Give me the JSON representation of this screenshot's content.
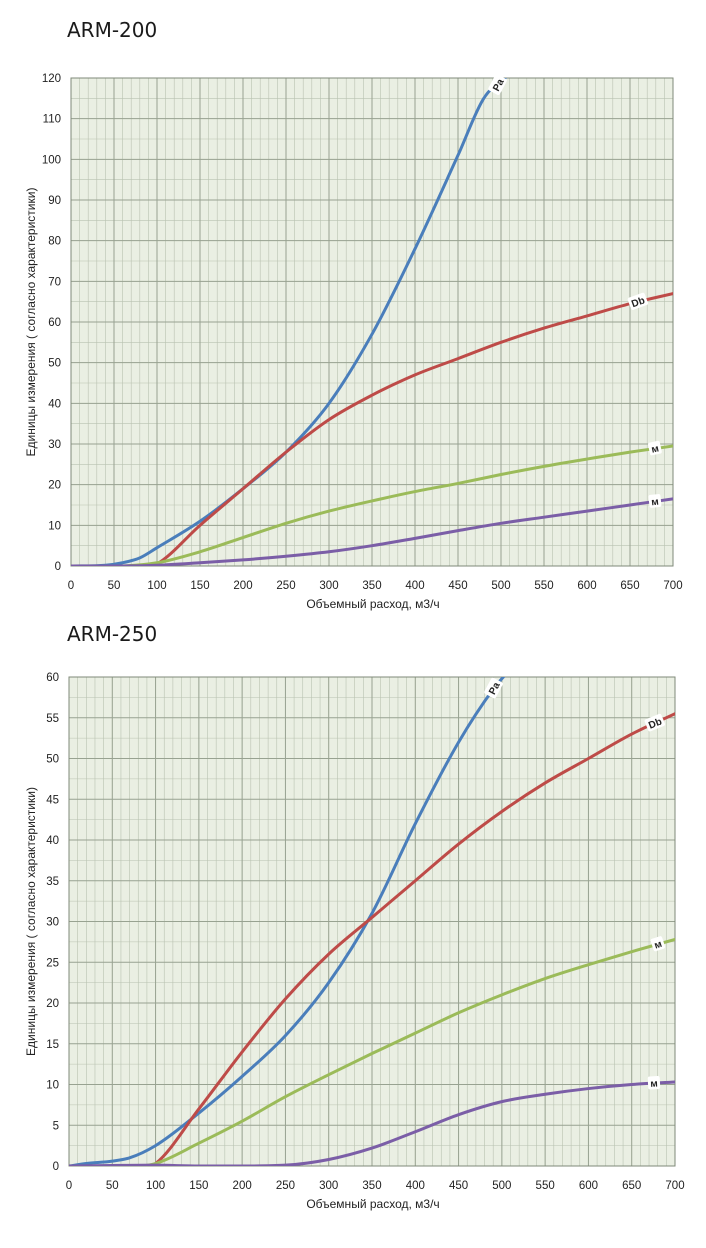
{
  "chart_data": [
    {
      "type": "line",
      "title": "ARM-200",
      "xlabel": "Объемный расход, м3/ч",
      "ylabel": "Единицы измерения ( согласно характеристики)",
      "xlim": [
        0,
        700
      ],
      "ylim": [
        0,
        120
      ],
      "x_ticks": [
        0,
        50,
        100,
        150,
        200,
        250,
        300,
        350,
        400,
        450,
        500,
        550,
        600,
        650,
        700
      ],
      "y_ticks": [
        0,
        10,
        20,
        30,
        40,
        50,
        60,
        70,
        80,
        90,
        100,
        110,
        120
      ],
      "grid": true,
      "series": [
        {
          "name": "Pa",
          "color": "#4a7ebb",
          "x": [
            0,
            40,
            60,
            80,
            100,
            150,
            200,
            250,
            300,
            350,
            400,
            450,
            480,
            510
          ],
          "y": [
            0,
            0.2,
            0.8,
            2,
            4.5,
            11,
            19,
            28,
            40,
            57,
            78,
            101,
            115,
            121
          ]
        },
        {
          "name": "Db",
          "color": "#be4b48",
          "x": [
            0,
            90,
            100,
            150,
            200,
            250,
            300,
            350,
            400,
            450,
            500,
            550,
            600,
            650,
            700
          ],
          "y": [
            0,
            0,
            0.5,
            10,
            19,
            28,
            36,
            42,
            47,
            51,
            55,
            58.5,
            61.5,
            64.5,
            67
          ]
        },
        {
          "name": "м",
          "color": "#9bbb59",
          "x": [
            0,
            50,
            100,
            150,
            200,
            250,
            300,
            350,
            400,
            450,
            500,
            550,
            600,
            650,
            700
          ],
          "y": [
            0,
            0,
            0.8,
            3.5,
            7,
            10.5,
            13.5,
            16,
            18.3,
            20.3,
            22.5,
            24.5,
            26.3,
            28,
            29.5
          ]
        },
        {
          "name": "м",
          "color": "#7b5ea7",
          "x": [
            0,
            50,
            100,
            150,
            200,
            250,
            300,
            350,
            400,
            450,
            500,
            550,
            600,
            650,
            700
          ],
          "y": [
            0,
            0,
            0.2,
            0.8,
            1.5,
            2.4,
            3.5,
            5,
            6.8,
            8.7,
            10.5,
            12,
            13.5,
            15,
            16.5
          ]
        }
      ]
    },
    {
      "type": "line",
      "title": "ARM-250",
      "xlabel": "Объемный расход, м3/ч",
      "ylabel": "Единицы измерения ( согласно характеристики)",
      "xlim": [
        0,
        700
      ],
      "ylim": [
        0,
        60
      ],
      "x_ticks": [
        0,
        50,
        100,
        150,
        200,
        250,
        300,
        350,
        400,
        450,
        500,
        550,
        600,
        650,
        700
      ],
      "y_ticks": [
        0,
        5,
        10,
        15,
        20,
        25,
        30,
        35,
        40,
        45,
        50,
        55,
        60
      ],
      "grid": true,
      "series": [
        {
          "name": "Pa",
          "color": "#4a7ebb",
          "x": [
            0,
            20,
            50,
            70,
            100,
            150,
            200,
            250,
            300,
            350,
            400,
            450,
            490,
            510
          ],
          "y": [
            0,
            0.3,
            0.6,
            1,
            2.5,
            6.5,
            11,
            16,
            22.5,
            31,
            42,
            52,
            58.5,
            61
          ]
        },
        {
          "name": "Db",
          "color": "#be4b48",
          "x": [
            0,
            90,
            100,
            150,
            200,
            250,
            300,
            350,
            400,
            450,
            500,
            550,
            600,
            650,
            700
          ],
          "y": [
            0,
            0,
            0.3,
            7,
            14,
            20.5,
            26,
            30.5,
            35,
            39.5,
            43.5,
            47,
            50,
            53,
            55.5
          ]
        },
        {
          "name": "м",
          "color": "#9bbb59",
          "x": [
            0,
            80,
            100,
            150,
            200,
            250,
            300,
            350,
            400,
            450,
            500,
            550,
            600,
            650,
            700
          ],
          "y": [
            0,
            0,
            0.3,
            2.8,
            5.5,
            8.5,
            11.2,
            13.8,
            16.3,
            18.8,
            21,
            23,
            24.7,
            26.3,
            27.8
          ]
        },
        {
          "name": "м",
          "color": "#7b5ea7",
          "x": [
            0,
            100,
            150,
            200,
            250,
            300,
            350,
            400,
            450,
            500,
            550,
            600,
            650,
            700
          ],
          "y": [
            0,
            0.1,
            0,
            0,
            0.1,
            0.8,
            2.2,
            4.2,
            6.3,
            7.9,
            8.8,
            9.5,
            10,
            10.3
          ]
        }
      ]
    }
  ]
}
